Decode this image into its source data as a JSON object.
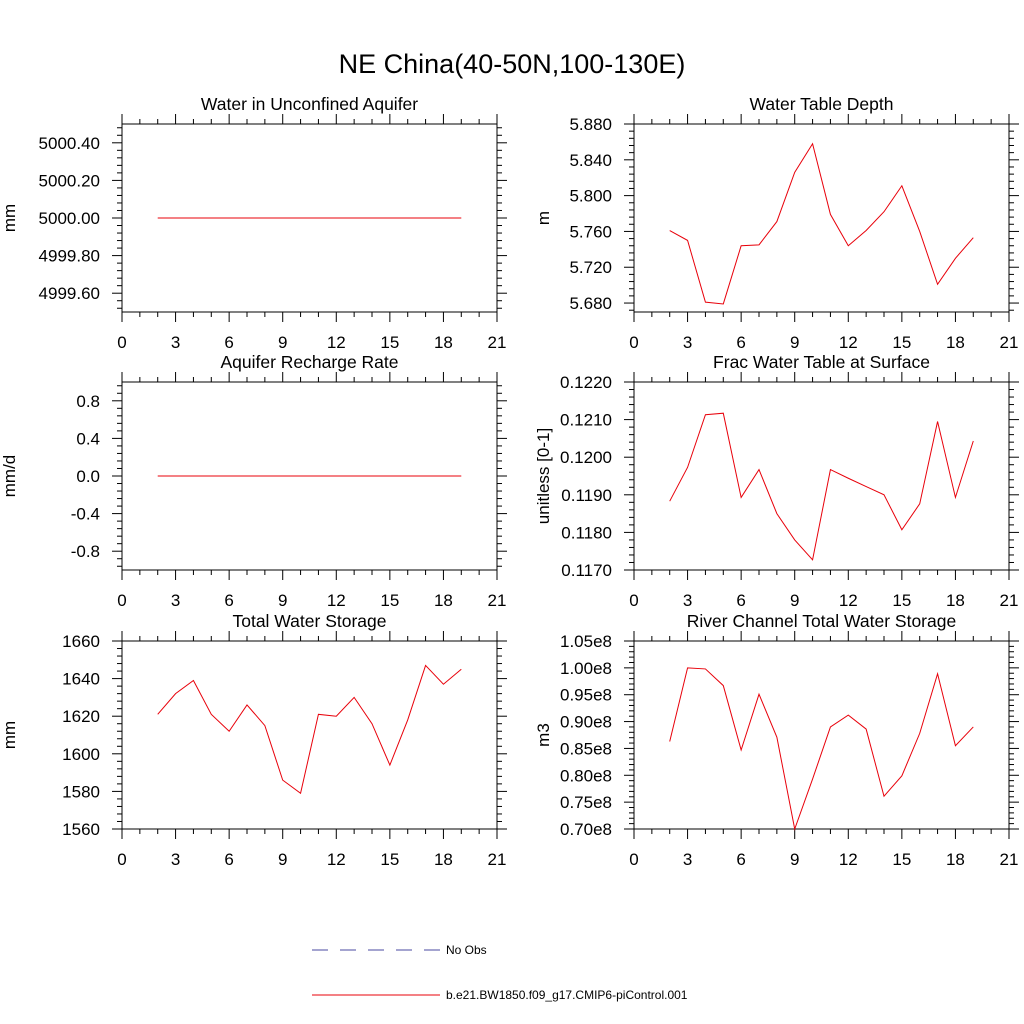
{
  "figure": {
    "title": "NE China(40-50N,100-130E)"
  },
  "legend": {
    "entries": [
      {
        "label": "No Obs",
        "color": "#4a4aa0",
        "style": "dashed"
      },
      {
        "label": "b.e21.BW1850.f09_g17.CMIP6-piControl.001",
        "color": "#e8000a",
        "style": "solid"
      }
    ]
  },
  "chart_data": [
    {
      "type": "line",
      "title": "Water in Unconfined Aquifer",
      "xlabel": "",
      "ylabel": "mm",
      "xlim": [
        0,
        21
      ],
      "ylim": [
        4999.5,
        5000.5
      ],
      "xticks": [
        0,
        3,
        6,
        9,
        12,
        15,
        18,
        21
      ],
      "xtick_labels": [
        "0",
        "3",
        "6",
        "9",
        "12",
        "15",
        "18",
        "21"
      ],
      "yticks": [
        4999.6,
        4999.8,
        5000.0,
        5000.2,
        5000.4
      ],
      "ytick_labels": [
        "4999.60",
        "4999.80",
        "5000.00",
        "5000.20",
        "5000.40"
      ],
      "x": [
        2,
        3,
        4,
        5,
        6,
        7,
        8,
        9,
        10,
        11,
        12,
        13,
        14,
        15,
        16,
        17,
        18,
        19
      ],
      "series": [
        {
          "name": "b.e21.BW1850.f09_g17.CMIP6-piControl.001",
          "color": "#e8000a",
          "values": [
            5000,
            5000,
            5000,
            5000,
            5000,
            5000,
            5000,
            5000,
            5000,
            5000,
            5000,
            5000,
            5000,
            5000,
            5000,
            5000,
            5000,
            5000
          ]
        }
      ]
    },
    {
      "type": "line",
      "title": "Water Table Depth",
      "xlabel": "",
      "ylabel": "m",
      "xlim": [
        0,
        21
      ],
      "ylim": [
        5.67,
        5.88
      ],
      "xticks": [
        0,
        3,
        6,
        9,
        12,
        15,
        18,
        21
      ],
      "xtick_labels": [
        "0",
        "3",
        "6",
        "9",
        "12",
        "15",
        "18",
        "21"
      ],
      "yticks": [
        5.68,
        5.72,
        5.76,
        5.8,
        5.84,
        5.88
      ],
      "ytick_labels": [
        "5.680",
        "5.720",
        "5.760",
        "5.800",
        "5.840",
        "5.880"
      ],
      "x": [
        2,
        3,
        4,
        5,
        6,
        7,
        8,
        9,
        10,
        11,
        12,
        13,
        14,
        15,
        16,
        17,
        18,
        19
      ],
      "series": [
        {
          "name": "b.e21.BW1850.f09_g17.CMIP6-piControl.001",
          "color": "#e8000a",
          "values": [
            5.761,
            5.75,
            5.681,
            5.679,
            5.744,
            5.745,
            5.771,
            5.826,
            5.858,
            5.779,
            5.744,
            5.761,
            5.782,
            5.811,
            5.76,
            5.701,
            5.73,
            5.753
          ]
        }
      ]
    },
    {
      "type": "line",
      "title": "Aquifer Recharge Rate",
      "xlabel": "",
      "ylabel": "mm/d",
      "xlim": [
        0,
        21
      ],
      "ylim": [
        -1.0,
        1.0
      ],
      "xticks": [
        0,
        3,
        6,
        9,
        12,
        15,
        18,
        21
      ],
      "xtick_labels": [
        "0",
        "3",
        "6",
        "9",
        "12",
        "15",
        "18",
        "21"
      ],
      "yticks": [
        -0.8,
        -0.4,
        0.0,
        0.4,
        0.8
      ],
      "ytick_labels": [
        "-0.8",
        "-0.4",
        "0.0",
        "0.4",
        "0.8"
      ],
      "x": [
        2,
        3,
        4,
        5,
        6,
        7,
        8,
        9,
        10,
        11,
        12,
        13,
        14,
        15,
        16,
        17,
        18,
        19
      ],
      "series": [
        {
          "name": "b.e21.BW1850.f09_g17.CMIP6-piControl.001",
          "color": "#e8000a",
          "values": [
            0,
            0,
            0,
            0,
            0,
            0,
            0,
            0,
            0,
            0,
            0,
            0,
            0,
            0,
            0,
            0,
            0,
            0
          ]
        }
      ]
    },
    {
      "type": "line",
      "title": "Frac Water Table at Surface",
      "xlabel": "",
      "ylabel": "unitless [0-1]",
      "xlim": [
        0,
        21
      ],
      "ylim": [
        0.117,
        0.122
      ],
      "xticks": [
        0,
        3,
        6,
        9,
        12,
        15,
        18,
        21
      ],
      "xtick_labels": [
        "0",
        "3",
        "6",
        "9",
        "12",
        "15",
        "18",
        "21"
      ],
      "yticks": [
        0.117,
        0.118,
        0.119,
        0.12,
        0.121,
        0.122
      ],
      "ytick_labels": [
        "0.1170",
        "0.1180",
        "0.1190",
        "0.1200",
        "0.1210",
        "0.1220"
      ],
      "x": [
        2,
        3,
        4,
        5,
        6,
        7,
        8,
        9,
        10,
        11,
        12,
        13,
        14,
        15,
        16,
        17,
        18,
        19
      ],
      "series": [
        {
          "name": "b.e21.BW1850.f09_g17.CMIP6-piControl.001",
          "color": "#e8000a",
          "values": [
            0.11883,
            0.11973,
            0.12113,
            0.12117,
            0.11893,
            0.11967,
            0.1185,
            0.1178,
            0.11727,
            0.11967,
            0.11944,
            0.11922,
            0.119,
            0.11807,
            0.11876,
            0.12095,
            0.11893,
            0.12043
          ]
        }
      ]
    },
    {
      "type": "line",
      "title": "Total Water Storage",
      "xlabel": "",
      "ylabel": "mm",
      "xlim": [
        0,
        21
      ],
      "ylim": [
        1560,
        1660
      ],
      "xticks": [
        0,
        3,
        6,
        9,
        12,
        15,
        18,
        21
      ],
      "xtick_labels": [
        "0",
        "3",
        "6",
        "9",
        "12",
        "15",
        "18",
        "21"
      ],
      "yticks": [
        1560,
        1580,
        1600,
        1620,
        1640,
        1660
      ],
      "ytick_labels": [
        "1560",
        "1580",
        "1600",
        "1620",
        "1640",
        "1660"
      ],
      "x": [
        2,
        3,
        4,
        5,
        6,
        7,
        8,
        9,
        10,
        11,
        12,
        13,
        14,
        15,
        16,
        17,
        18,
        19
      ],
      "series": [
        {
          "name": "b.e21.BW1850.f09_g17.CMIP6-piControl.001",
          "color": "#e8000a",
          "values": [
            1621,
            1632,
            1639,
            1621,
            1612,
            1626,
            1615,
            1586,
            1579,
            1621,
            1620,
            1630,
            1616,
            1594,
            1618,
            1647,
            1637,
            1645
          ]
        }
      ]
    },
    {
      "type": "line",
      "title": "River Channel Total Water Storage",
      "xlabel": "",
      "ylabel": "m3",
      "xlim": [
        0,
        21
      ],
      "ylim": [
        70000000,
        105000000
      ],
      "xticks": [
        0,
        3,
        6,
        9,
        12,
        15,
        18,
        21
      ],
      "xtick_labels": [
        "0",
        "3",
        "6",
        "9",
        "12",
        "15",
        "18",
        "21"
      ],
      "yticks": [
        70000000,
        75000000,
        80000000,
        85000000,
        90000000,
        95000000,
        100000000,
        105000000
      ],
      "ytick_labels": [
        "0.70e8",
        "0.75e8",
        "0.80e8",
        "0.85e8",
        "0.90e8",
        "0.95e8",
        "1.00e8",
        "1.05e8"
      ],
      "x": [
        2,
        3,
        4,
        5,
        6,
        7,
        8,
        9,
        10,
        11,
        12,
        13,
        14,
        15,
        16,
        17,
        18,
        19
      ],
      "series": [
        {
          "name": "b.e21.BW1850.f09_g17.CMIP6-piControl.001",
          "color": "#e8000a",
          "values": [
            86300000,
            100000000,
            99800000,
            96700000,
            84700000,
            95100000,
            87100000,
            70000000,
            79300000,
            89000000,
            91200000,
            88600000,
            76100000,
            79900000,
            87800000,
            98900000,
            85500000,
            89000000
          ]
        }
      ]
    }
  ]
}
